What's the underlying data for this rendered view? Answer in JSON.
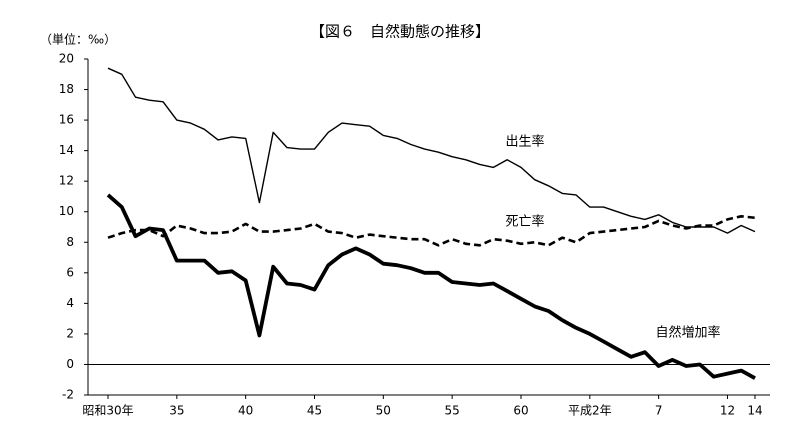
{
  "chart_data": {
    "type": "line",
    "title": "【図６　自然動態の推移】",
    "y_unit": "（単位：‰）",
    "categories": [
      "昭和30年",
      null,
      null,
      null,
      null,
      "35",
      null,
      null,
      null,
      null,
      "40",
      null,
      null,
      null,
      null,
      "45",
      null,
      null,
      null,
      null,
      "50",
      null,
      null,
      null,
      null,
      "55",
      null,
      null,
      null,
      null,
      "60",
      null,
      null,
      null,
      null,
      "平成2年",
      null,
      null,
      null,
      null,
      "7",
      null,
      null,
      null,
      null,
      "12",
      null,
      "14"
    ],
    "series": [
      {
        "name": "出生率",
        "color": "#000000",
        "dash": false,
        "values": [
          19.4,
          19.0,
          17.5,
          17.3,
          17.2,
          16.0,
          15.8,
          15.4,
          14.7,
          14.9,
          14.8,
          10.6,
          15.2,
          14.2,
          14.1,
          14.1,
          15.2,
          15.8,
          15.7,
          15.6,
          15.0,
          14.8,
          14.4,
          14.1,
          13.9,
          13.6,
          13.4,
          13.1,
          12.9,
          13.4,
          12.9,
          12.1,
          11.7,
          11.2,
          11.1,
          10.3,
          10.3,
          10.0,
          9.7,
          9.5,
          9.8,
          9.3,
          9.0,
          9.0,
          9.0,
          8.6,
          9.1,
          8.7
        ]
      },
      {
        "name": "死亡率",
        "color": "#000000",
        "dash": true,
        "values": [
          8.3,
          8.6,
          8.8,
          8.8,
          8.4,
          9.1,
          8.9,
          8.6,
          8.6,
          8.7,
          9.2,
          8.7,
          8.7,
          8.8,
          8.9,
          9.2,
          8.7,
          8.6,
          8.3,
          8.5,
          8.4,
          8.3,
          8.2,
          8.2,
          7.8,
          8.2,
          7.9,
          7.8,
          8.2,
          8.1,
          7.9,
          8.0,
          7.8,
          8.3,
          8.0,
          8.6,
          8.7,
          8.8,
          8.9,
          9.0,
          9.4,
          9.1,
          8.9,
          9.1,
          9.1,
          9.5,
          9.7,
          9.6
        ]
      },
      {
        "name": "自然増加率",
        "color": "#000000",
        "dash": false,
        "values": [
          11.1,
          10.3,
          8.4,
          8.9,
          8.8,
          6.8,
          6.8,
          6.8,
          6.0,
          6.1,
          5.5,
          1.9,
          6.4,
          5.3,
          5.2,
          4.9,
          6.5,
          7.2,
          7.6,
          7.2,
          6.6,
          6.5,
          6.3,
          6.0,
          6.0,
          5.4,
          5.3,
          5.2,
          5.3,
          4.8,
          4.3,
          3.8,
          3.5,
          2.9,
          2.4,
          2.0,
          1.5,
          1.0,
          0.5,
          0.8,
          -0.1,
          0.3,
          -0.1,
          0.0,
          -0.8,
          -0.6,
          -0.4,
          -0.9
        ]
      }
    ],
    "ylim": [
      -2,
      20
    ],
    "yticks": [
      -2,
      0,
      2,
      4,
      6,
      8,
      10,
      12,
      14,
      16,
      18,
      20
    ],
    "grid": false
  }
}
